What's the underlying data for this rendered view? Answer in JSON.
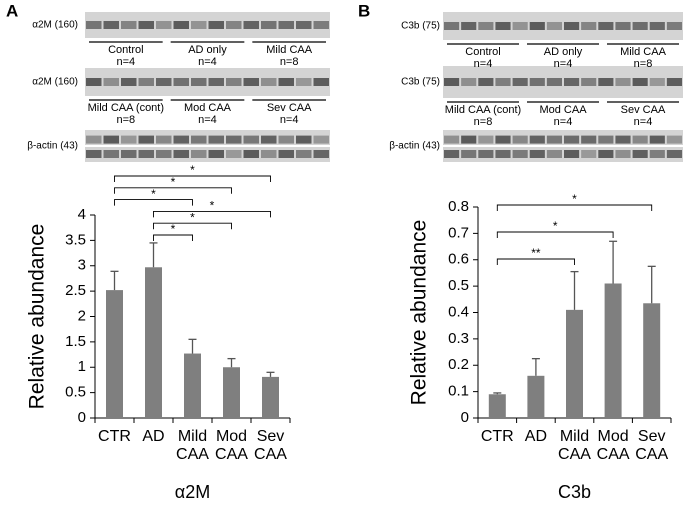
{
  "chart_data": [
    {
      "type": "bar",
      "panel": "A",
      "blots": [
        {
          "label": "α2M (160)",
          "groups": [
            "Control\nn=4",
            "AD only\nn=4",
            "Mild CAA\nn=8"
          ]
        },
        {
          "label": "α2M (160)",
          "groups": [
            "Mild CAA (cont)\nn=8",
            "Mod CAA\nn=4",
            "Sev CAA\nn=4"
          ]
        },
        {
          "label": "β-actin (43)",
          "groups": []
        }
      ],
      "title": "α2M",
      "ylabel": "Relative abundance",
      "categories": [
        "CTR",
        "AD",
        "Mild\nCAA",
        "Mod\nCAA",
        "Sev\nCAA"
      ],
      "values": [
        2.52,
        2.97,
        1.27,
        1.0,
        0.81
      ],
      "errors": [
        0.37,
        0.48,
        0.28,
        0.17,
        0.09
      ],
      "color": "#7f7f7f",
      "ylim": [
        0,
        4
      ],
      "yticks": [
        0,
        0.5,
        1,
        1.5,
        2,
        2.5,
        3,
        3.5,
        4
      ],
      "significance": [
        {
          "from": 0,
          "to": 4,
          "label": "*"
        },
        {
          "from": 0,
          "to": 3,
          "label": "*"
        },
        {
          "from": 0,
          "to": 2,
          "label": "*"
        },
        {
          "from": 1,
          "to": 4,
          "label": "*"
        },
        {
          "from": 1,
          "to": 3,
          "label": "*"
        },
        {
          "from": 1,
          "to": 2,
          "label": "*"
        }
      ]
    },
    {
      "type": "bar",
      "panel": "B",
      "blots": [
        {
          "label": "C3b (75)",
          "groups": [
            "Control\nn=4",
            "AD only\nn=4",
            "Mild CAA\nn=8"
          ]
        },
        {
          "label": "C3b (75)",
          "groups": [
            "Mild CAA (cont)\nn=8",
            "Mod CAA\nn=4",
            "Sev CAA\nn=4"
          ]
        },
        {
          "label": "β-actin (43)",
          "groups": []
        }
      ],
      "title": "C3b",
      "ylabel": "Relative abundance",
      "categories": [
        "CTR",
        "AD",
        "Mild\nCAA",
        "Mod\nCAA",
        "Sev\nCAA"
      ],
      "values": [
        0.09,
        0.16,
        0.41,
        0.51,
        0.435
      ],
      "errors": [
        0.005,
        0.065,
        0.145,
        0.16,
        0.14
      ],
      "color": "#7f7f7f",
      "ylim": [
        0,
        0.8
      ],
      "yticks": [
        0,
        0.1,
        0.2,
        0.3,
        0.4,
        0.5,
        0.6,
        0.7,
        0.8
      ],
      "significance": [
        {
          "from": 0,
          "to": 4,
          "label": "*"
        },
        {
          "from": 0,
          "to": 3,
          "label": "*"
        },
        {
          "from": 0,
          "to": 2,
          "label": "**"
        }
      ]
    }
  ]
}
